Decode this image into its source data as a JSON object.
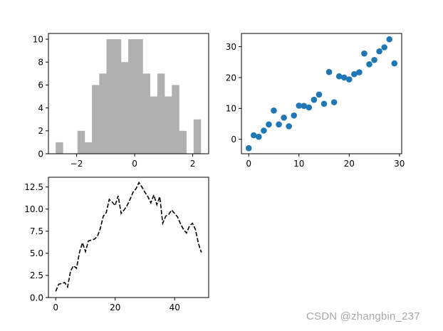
{
  "watermark": "CSDN @zhangbin_237",
  "colors": {
    "hist_bar": "#b0b0b0",
    "scatter_point": "#1f77b4",
    "line": "#000000",
    "axes": "#000000",
    "background": "#ffffff"
  },
  "chart_data": [
    {
      "type": "bar",
      "subtype": "histogram",
      "position": "top-left",
      "title": "",
      "xlabel": "",
      "ylabel": "",
      "bins": 20,
      "bin_edges_start": -2.72,
      "bin_width": 0.25,
      "values": [
        1,
        0,
        0,
        2,
        1,
        6,
        7,
        10,
        10,
        8,
        10,
        10,
        7,
        5,
        7,
        5,
        6,
        2,
        0,
        3
      ],
      "xticks": [
        -2,
        0,
        2
      ],
      "xtick_labels": [
        "−2",
        "0",
        "2"
      ],
      "yticks": [
        0,
        2,
        4,
        6,
        8,
        10
      ],
      "ytick_labels": [
        "0",
        "2",
        "4",
        "6",
        "8",
        "10"
      ],
      "xlim": [
        -2.97,
        2.55
      ],
      "ylim": [
        0,
        10.5
      ],
      "grid": false,
      "color": "#b0b0b0"
    },
    {
      "type": "scatter",
      "position": "top-right",
      "title": "",
      "xlabel": "",
      "ylabel": "",
      "x": [
        0,
        1,
        2,
        3,
        4,
        5,
        6,
        7,
        8,
        9,
        10,
        11,
        12,
        13,
        14,
        15,
        16,
        17,
        18,
        19,
        20,
        21,
        22,
        23,
        24,
        25,
        26,
        27,
        28,
        29
      ],
      "y": [
        -2.9,
        1.3,
        0.8,
        2.8,
        4.8,
        9.3,
        4.8,
        7.0,
        4.2,
        7.7,
        10.9,
        10.8,
        10.3,
        12.8,
        14.5,
        11.5,
        21.8,
        12.0,
        20.4,
        20.0,
        19.4,
        21.1,
        21.7,
        27.8,
        24.3,
        25.7,
        28.5,
        29.8,
        32.4,
        24.6
      ],
      "xticks": [
        0,
        10,
        20,
        30
      ],
      "xtick_labels": [
        "0",
        "10",
        "20",
        "30"
      ],
      "yticks": [
        0,
        10,
        20,
        30
      ],
      "ytick_labels": [
        "0",
        "10",
        "20",
        "30"
      ],
      "xlim": [
        -1.45,
        30.45
      ],
      "ylim": [
        -4.7,
        34.3
      ],
      "grid": false,
      "color": "#1f77b4"
    },
    {
      "type": "line",
      "position": "bottom-left",
      "linestyle": "dashed",
      "title": "",
      "xlabel": "",
      "ylabel": "",
      "x": [
        0,
        1,
        2,
        3,
        4,
        5,
        6,
        7,
        8,
        9,
        10,
        11,
        12,
        13,
        14,
        15,
        16,
        17,
        18,
        19,
        20,
        21,
        22,
        23,
        24,
        25,
        26,
        27,
        28,
        29,
        30,
        31,
        32,
        33,
        34,
        35,
        36,
        37,
        38,
        39,
        40,
        41,
        42,
        43,
        44,
        45,
        46,
        47,
        48,
        49
      ],
      "y": [
        0.7,
        1.5,
        1.6,
        1.7,
        1.2,
        3.0,
        3.6,
        3.3,
        5.1,
        6.2,
        5.2,
        6.4,
        6.5,
        6.6,
        6.9,
        7.8,
        9.2,
        9.6,
        11.1,
        10.8,
        10.4,
        11.5,
        9.5,
        9.9,
        10.4,
        11.1,
        11.9,
        12.3,
        13.0,
        12.5,
        11.9,
        11.4,
        10.7,
        11.6,
        10.5,
        11.4,
        8.4,
        9.2,
        9.4,
        9.9,
        9.5,
        9.1,
        8.3,
        7.7,
        7.3,
        8.1,
        8.4,
        7.7,
        6.1,
        5.1
      ],
      "xticks": [
        0,
        20,
        40
      ],
      "xtick_labels": [
        "0",
        "20",
        "40"
      ],
      "yticks": [
        0,
        2.5,
        5,
        7.5,
        10,
        12.5
      ],
      "ytick_labels": [
        "0.0",
        "2.5",
        "5.0",
        "7.5",
        "10.0",
        "12.5"
      ],
      "xlim": [
        -2.45,
        51.45
      ],
      "ylim": [
        0,
        13.6
      ],
      "grid": false,
      "color": "#000000"
    }
  ]
}
